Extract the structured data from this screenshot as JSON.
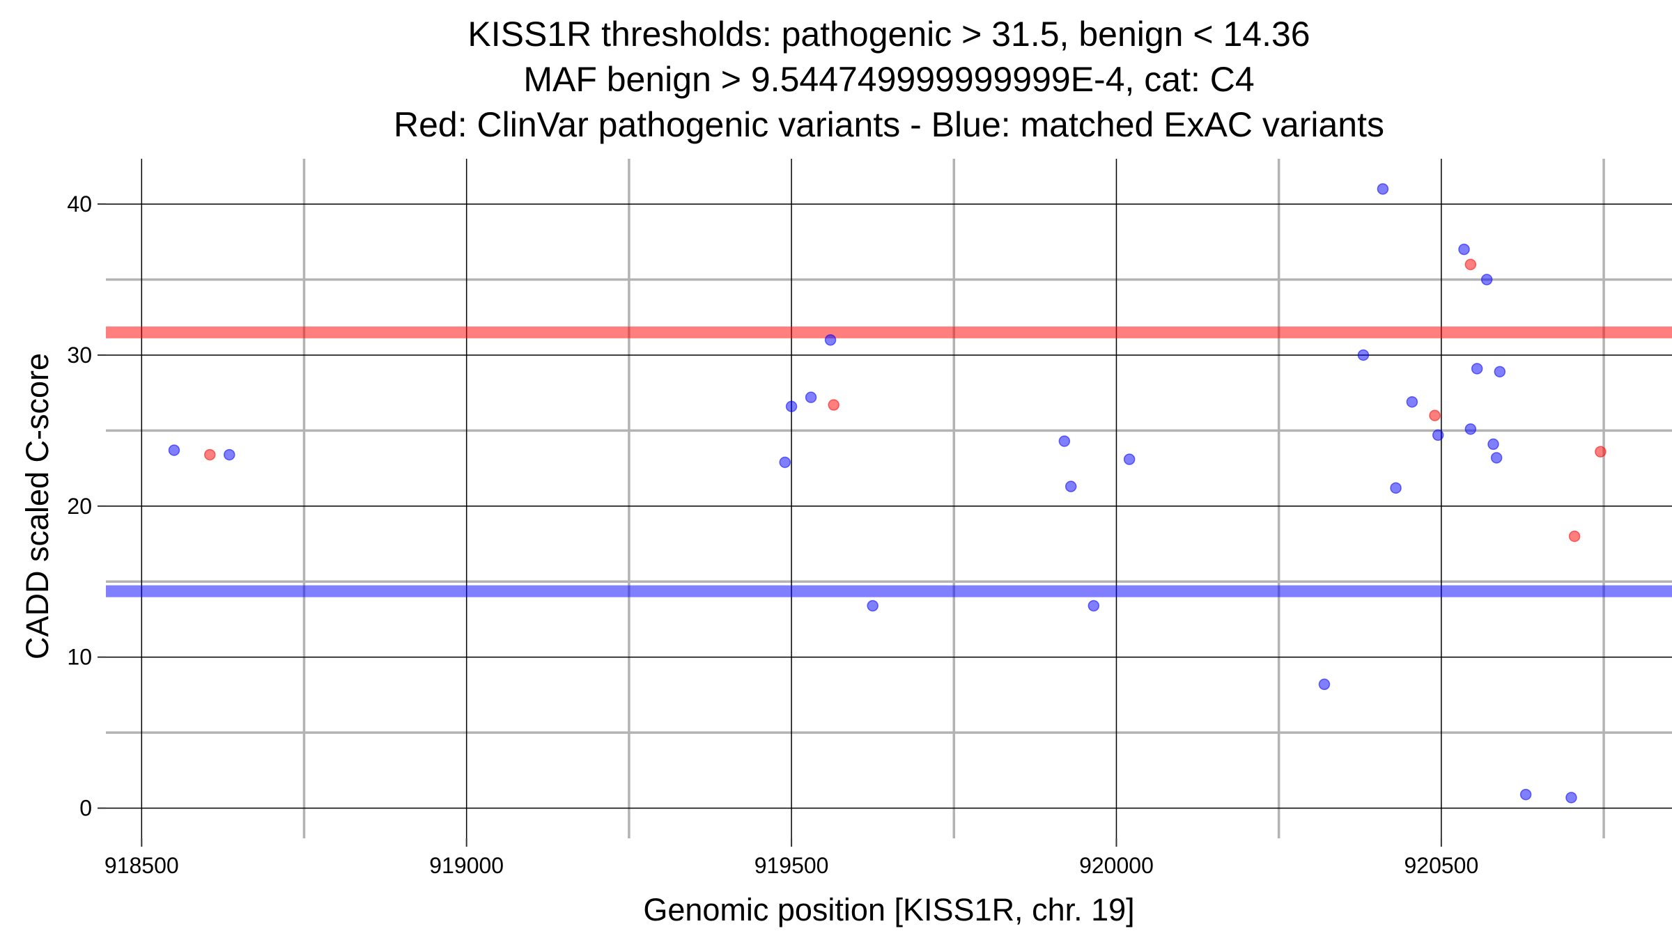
{
  "chart_data": {
    "type": "scatter",
    "title": [
      "KISS1R thresholds: pathogenic > 31.5, benign < 14.36",
      "MAF benign > 9.544749999999999E-4, cat: C4",
      "Red: ClinVar pathogenic variants - Blue: matched ExAC variants"
    ],
    "xlabel": "Genomic position [KISS1R, chr. 19]",
    "ylabel": "CADD scaled C-score",
    "xlim": [
      918445,
      920855
    ],
    "ylim": [
      -2,
      43
    ],
    "x_major_ticks": [
      918500,
      919000,
      919500,
      920000,
      920500
    ],
    "x_minor_ticks": [
      918750,
      919250,
      919750,
      920250,
      920750
    ],
    "y_major_ticks": [
      0,
      10,
      20,
      30,
      40
    ],
    "y_minor_ticks": [
      5,
      15,
      25,
      35
    ],
    "thresholds": [
      {
        "name": "pathogenic",
        "value": 31.5,
        "color": "#ff0000"
      },
      {
        "name": "benign",
        "value": 14.36,
        "color": "#0000ff"
      }
    ],
    "series": [
      {
        "name": "ClinVar pathogenic variants",
        "color": "#ff0000",
        "points": [
          {
            "x": 918605,
            "y": 23.4
          },
          {
            "x": 919565,
            "y": 26.7
          },
          {
            "x": 920490,
            "y": 26.0
          },
          {
            "x": 920545,
            "y": 36.0
          },
          {
            "x": 920705,
            "y": 18.0
          },
          {
            "x": 920745,
            "y": 23.6
          }
        ]
      },
      {
        "name": "matched ExAC variants",
        "color": "#0000ff",
        "points": [
          {
            "x": 918550,
            "y": 23.7
          },
          {
            "x": 918635,
            "y": 23.4
          },
          {
            "x": 919490,
            "y": 22.9
          },
          {
            "x": 919500,
            "y": 26.6
          },
          {
            "x": 919530,
            "y": 27.2
          },
          {
            "x": 919560,
            "y": 31.0
          },
          {
            "x": 919625,
            "y": 13.4
          },
          {
            "x": 919920,
            "y": 24.3
          },
          {
            "x": 919930,
            "y": 21.3
          },
          {
            "x": 919965,
            "y": 13.4
          },
          {
            "x": 920020,
            "y": 23.1
          },
          {
            "x": 920320,
            "y": 8.2
          },
          {
            "x": 920380,
            "y": 30.0
          },
          {
            "x": 920410,
            "y": 41.0
          },
          {
            "x": 920430,
            "y": 21.2
          },
          {
            "x": 920455,
            "y": 26.9
          },
          {
            "x": 920495,
            "y": 24.7
          },
          {
            "x": 920535,
            "y": 37.0
          },
          {
            "x": 920545,
            "y": 25.1
          },
          {
            "x": 920555,
            "y": 29.1
          },
          {
            "x": 920570,
            "y": 35.0
          },
          {
            "x": 920580,
            "y": 24.1
          },
          {
            "x": 920585,
            "y": 23.2
          },
          {
            "x": 920590,
            "y": 28.9
          },
          {
            "x": 920630,
            "y": 0.9
          },
          {
            "x": 920700,
            "y": 0.7
          }
        ]
      }
    ]
  }
}
